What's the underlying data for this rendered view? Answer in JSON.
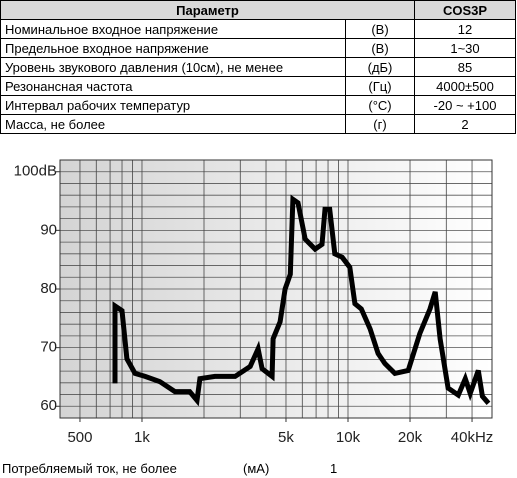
{
  "table": {
    "header": [
      "Параметр",
      "COS3P"
    ],
    "rows": [
      [
        "Номинальное входное напряжение",
        "(В)",
        "12"
      ],
      [
        "Предельное входное напряжение",
        "(В)",
        "1~30"
      ],
      [
        "Уровень звукового давления (10см), не менее",
        "(дБ)",
        "85"
      ],
      [
        "Резонансная частота",
        "(Гц)",
        "4000±500"
      ],
      [
        "Интервал рабочих температур",
        "(°С)",
        "-20 ~ +100"
      ],
      [
        "Масса, не более",
        "(г)",
        "2"
      ]
    ]
  },
  "chart_data": {
    "type": "line",
    "log_x": true,
    "color": "#000000",
    "x": [
      740,
      740,
      800,
      845,
      925,
      1035,
      1220,
      1445,
      1705,
      1850,
      1910,
      2260,
      2830,
      3350,
      3660,
      3830,
      4280,
      4330,
      4680,
      4950,
      5250,
      5400,
      5720,
      6200,
      6920,
      7480,
      7730,
      8150,
      8630,
      9370,
      10200,
      10800,
      11600,
      12800,
      14000,
      15100,
      16900,
      19600,
      22300,
      25000,
      26500,
      28000,
      30600,
      34300,
      37100,
      39200,
      42900,
      44900,
      48100
    ],
    "values": [
      63.9,
      77.1,
      76.3,
      68.1,
      65.6,
      65.1,
      64.2,
      62.5,
      62.5,
      61.0,
      64.7,
      65.1,
      65.1,
      66.8,
      69.8,
      66.4,
      65.1,
      71.5,
      74.4,
      80.0,
      82.5,
      95.3,
      94.7,
      88.5,
      86.8,
      87.6,
      93.6,
      93.6,
      86.0,
      85.4,
      83.7,
      77.5,
      76.6,
      73.2,
      69.0,
      67.3,
      65.6,
      66.1,
      72.4,
      76.6,
      79.5,
      71.5,
      63.1,
      61.9,
      64.7,
      62.2,
      66.1,
      61.7,
      60.5
    ],
    "xlim": [
      400,
      50000
    ],
    "ylim": [
      58,
      102
    ],
    "xticks": [
      {
        "value": 500,
        "label": "500"
      },
      {
        "value": 1000,
        "label": "1k"
      },
      {
        "value": 5000,
        "label": "5k"
      },
      {
        "value": 10000,
        "label": "10k"
      },
      {
        "value": 20000,
        "label": "20k"
      },
      {
        "value": 40000,
        "label": "40kHz"
      }
    ],
    "yticks": [
      60,
      70,
      80,
      90,
      {
        "value": 100,
        "label": "100dB"
      }
    ],
    "xgrid": [
      500,
      600,
      700,
      800,
      900,
      1000,
      2000,
      3000,
      4000,
      5000,
      6000,
      7000,
      8000,
      9000,
      10000,
      20000,
      30000,
      40000
    ],
    "ygrid": [
      60,
      62,
      64,
      66,
      68,
      70,
      72,
      74,
      76,
      78,
      80,
      82,
      84,
      86,
      88,
      90,
      92,
      94,
      96,
      98,
      100
    ]
  },
  "footer": [
    "Потребляемый ток, не более",
    "(мА)",
    "1"
  ]
}
